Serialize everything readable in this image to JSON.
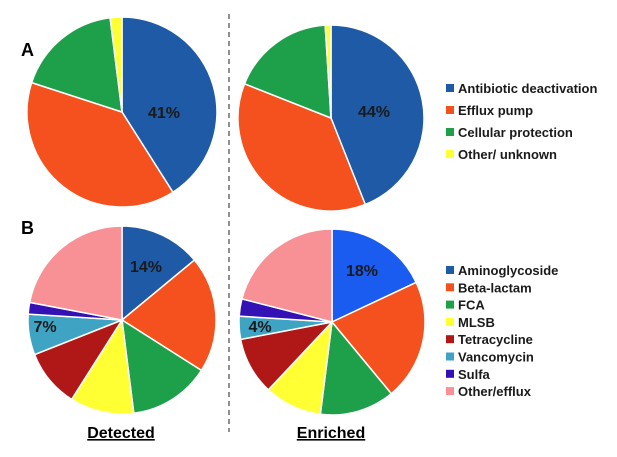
{
  "panel_labels": [
    "A",
    "B"
  ],
  "column_labels": [
    "Detected",
    "Enriched"
  ],
  "legends": {
    "A": [
      {
        "label": "Antibiotic deactivation",
        "color": "#1F5AA6"
      },
      {
        "label": "Efflux pump",
        "color": "#F4511E"
      },
      {
        "label": "Cellular protection",
        "color": "#1EA04A"
      },
      {
        "label": "Other/ unknown",
        "color": "#FFFF33"
      }
    ],
    "B": [
      {
        "label": "Aminoglycoside",
        "color": "#1F5AA6"
      },
      {
        "label": "Beta-lactam",
        "color": "#F4511E"
      },
      {
        "label": "FCA",
        "color": "#1EA04A"
      },
      {
        "label": "MLSB",
        "color": "#FFFF33"
      },
      {
        "label": "Tetracycline",
        "color": "#B01717"
      },
      {
        "label": "Vancomycin",
        "color": "#3FA4C4"
      },
      {
        "label": "Sulfa",
        "color": "#3411B5"
      },
      {
        "label": "Other/efflux",
        "color": "#F79196"
      }
    ]
  },
  "chart_data": [
    {
      "type": "pie",
      "panel": "A",
      "column": "Detected",
      "categories": [
        "Antibiotic deactivation",
        "Efflux pump",
        "Cellular protection",
        "Other/ unknown"
      ],
      "values": [
        41,
        39,
        18,
        2
      ],
      "colors": [
        "#1F5AA6",
        "#F4511E",
        "#1EA04A",
        "#FFFF33"
      ],
      "data_labels": [
        {
          "category": "Antibiotic deactivation",
          "text": "41%"
        }
      ]
    },
    {
      "type": "pie",
      "panel": "A",
      "column": "Enriched",
      "categories": [
        "Antibiotic deactivation",
        "Efflux pump",
        "Cellular protection",
        "Other/ unknown"
      ],
      "values": [
        44,
        37,
        18,
        1
      ],
      "colors": [
        "#1F5AA6",
        "#F4511E",
        "#1EA04A",
        "#FFFF33"
      ],
      "data_labels": [
        {
          "category": "Antibiotic deactivation",
          "text": "44%"
        }
      ]
    },
    {
      "type": "pie",
      "panel": "B",
      "column": "Detected",
      "categories": [
        "Aminoglycoside",
        "Beta-lactam",
        "FCA",
        "MLSB",
        "Tetracycline",
        "Vancomycin",
        "Sulfa",
        "Other/efflux"
      ],
      "values": [
        14,
        20,
        14,
        11,
        10,
        7,
        2,
        22
      ],
      "colors": [
        "#1F5AA6",
        "#F4511E",
        "#1EA04A",
        "#FFFF33",
        "#B01717",
        "#3FA4C4",
        "#3411B5",
        "#F79196"
      ],
      "data_labels": [
        {
          "category": "Aminoglycoside",
          "text": "14%"
        },
        {
          "category": "Vancomycin",
          "text": "7%"
        }
      ]
    },
    {
      "type": "pie",
      "panel": "B",
      "column": "Enriched",
      "categories": [
        "Aminoglycoside",
        "Beta-lactam",
        "FCA",
        "MLSB",
        "Tetracycline",
        "Vancomycin",
        "Sulfa",
        "Other/efflux"
      ],
      "values": [
        18,
        21,
        13,
        10,
        10,
        4,
        3,
        21
      ],
      "colors": [
        "#1A5CF0",
        "#F4511E",
        "#1EA04A",
        "#FFFF33",
        "#B01717",
        "#3FA4C4",
        "#3411B5",
        "#F79196"
      ],
      "data_labels": [
        {
          "category": "Aminoglycoside",
          "text": "18%"
        },
        {
          "category": "Vancomycin",
          "text": "4%"
        }
      ]
    }
  ]
}
